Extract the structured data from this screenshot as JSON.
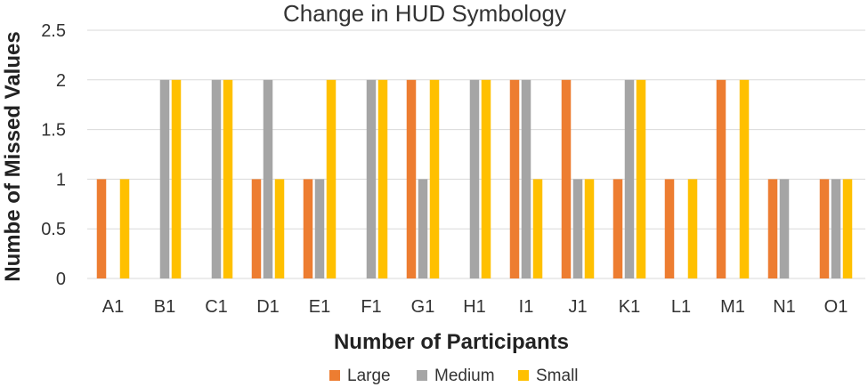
{
  "chart_data": {
    "type": "bar",
    "title": "Change in HUD Symbology",
    "xlabel": "Number of Participants",
    "ylabel": "Numbe of Missed Values",
    "categories": [
      "A1",
      "B1",
      "C1",
      "D1",
      "E1",
      "F1",
      "G1",
      "H1",
      "I1",
      "J1",
      "K1",
      "L1",
      "M1",
      "N1",
      "O1"
    ],
    "series": [
      {
        "name": "Large",
        "color": "#ED7D31",
        "values": [
          1,
          0,
          0,
          1,
          1,
          0,
          2,
          0,
          2,
          2,
          1,
          1,
          2,
          1,
          1
        ]
      },
      {
        "name": "Medium",
        "color": "#A5A5A5",
        "values": [
          0,
          2,
          2,
          2,
          1,
          2,
          1,
          2,
          2,
          1,
          2,
          0,
          0,
          1,
          1
        ]
      },
      {
        "name": "Small",
        "color": "#FFC000",
        "values": [
          1,
          2,
          2,
          1,
          2,
          2,
          2,
          2,
          1,
          1,
          2,
          1,
          2,
          0,
          1
        ]
      }
    ],
    "ylim": [
      0,
      2.5
    ],
    "yticks": [
      "0",
      "0.5",
      "1",
      "1.5",
      "2",
      "2.5"
    ],
    "grid": true,
    "legend_position": "bottom"
  }
}
